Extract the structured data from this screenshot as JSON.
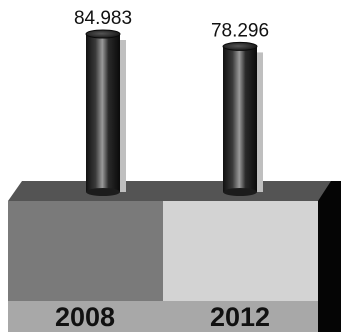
{
  "chart_data": {
    "type": "bar",
    "categories": [
      "2008",
      "2012"
    ],
    "values": [
      84.983,
      78.296
    ],
    "value_labels": [
      "84.983",
      "78.296"
    ],
    "title": "",
    "xlabel": "",
    "ylabel": "",
    "ylim": [
      0,
      90
    ],
    "grid": false,
    "legend": "none",
    "colors": {
      "bar_dark": "#1a1a1a",
      "bar_highlight": "#9a9a9a",
      "bar_shadow": "#bfbfbf",
      "base_top": "#545454",
      "base_front_left": "#7a7a7a",
      "base_front_right": "#d3d3d3",
      "base_side": "#050505",
      "label_strip": "#a8a8a8"
    }
  }
}
